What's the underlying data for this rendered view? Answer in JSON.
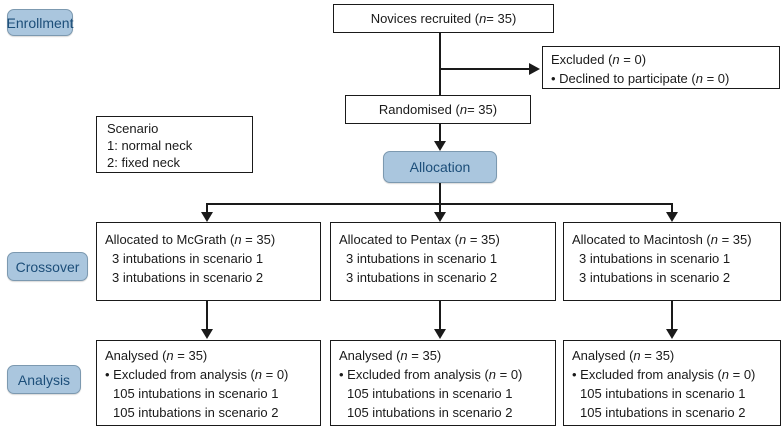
{
  "stage_labels": {
    "enrollment": "Enrollment",
    "crossover": "Crossover",
    "analysis": "Analysis"
  },
  "flow": {
    "novices": "Novices recruited (n = 35)",
    "excluded": {
      "line1": "Excluded (n = 0)",
      "line2": "• Declined to participate (n = 0)"
    },
    "randomised": "Randomised (n = 35)",
    "scenario_note": {
      "line1": "Scenario",
      "line2": "1: normal neck",
      "line3": "2: fixed neck"
    },
    "allocation": "Allocation",
    "arms": [
      {
        "title": "Allocated to McGrath (n = 35)",
        "line1": "3 intubations in scenario 1",
        "line2": "3 intubations in scenario 2"
      },
      {
        "title": "Allocated to Pentax (n = 35)",
        "line1": "3 intubations in scenario 1",
        "line2": "3 intubations in scenario 2"
      },
      {
        "title": "Allocated to Macintosh (n = 35)",
        "line1": "3 intubations in scenario 1",
        "line2": "3 intubations in scenario 2"
      }
    ],
    "analysis_boxes": [
      {
        "title": "Analysed (n = 35)",
        "line1": "• Excluded from analysis (n = 0)",
        "line2": "105 intubations in scenario 1",
        "line3": "105 intubations in scenario 2"
      },
      {
        "title": "Analysed (n = 35)",
        "line1": "• Excluded from analysis (n = 0)",
        "line2": "105 intubations in scenario 1",
        "line3": "105 intubations in scenario 2"
      },
      {
        "title": "Analysed (n = 35)",
        "line1": "• Excluded from analysis (n = 0)",
        "line2": "105 intubations in scenario 1",
        "line3": "105 intubations in scenario 2"
      }
    ]
  },
  "colors": {
    "badge_fill": "#aac6de",
    "badge_border": "#7c99b0",
    "badge_text": "#1c4e79",
    "box_border": "#1a1a1a",
    "line": "#1a1a1a"
  }
}
